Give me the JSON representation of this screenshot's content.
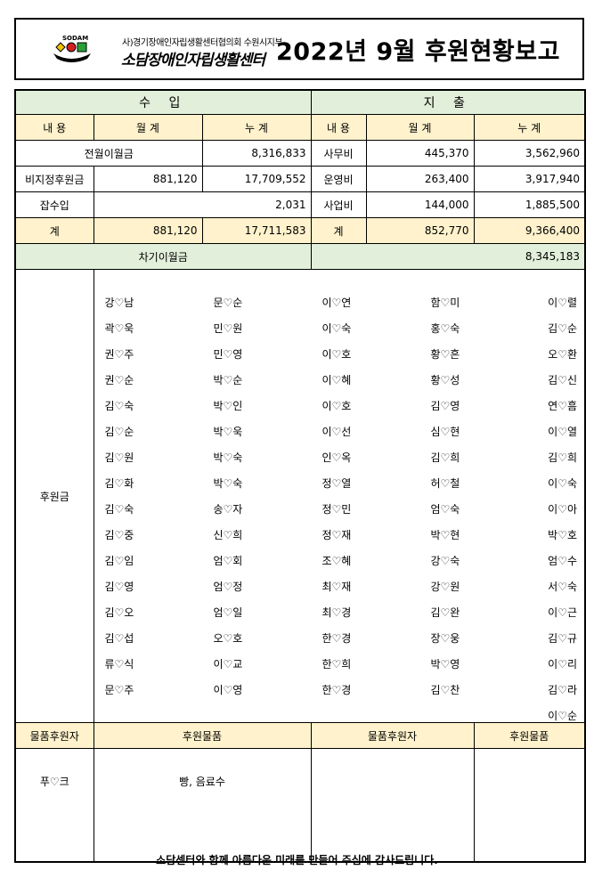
{
  "header": {
    "logo_text": "SODAM",
    "org": "사)경기장애인자립생활센터협의회 수원시지부",
    "center_name": "소담장애인자립생활센터",
    "title": "2022년 9월 후원현황보고"
  },
  "colors": {
    "section_header": "#e2efda",
    "column_header": "#fff2cc"
  },
  "income": {
    "label": "수 입",
    "col_item": "내 용",
    "col_month": "월 계",
    "col_total": "누 계",
    "rows": [
      {
        "item": "전월이월금",
        "total": "8,316,833"
      },
      {
        "item": "비지정후원금",
        "month": "881,120",
        "total": "17,709,552"
      },
      {
        "item": "잡수입",
        "total": "2,031"
      },
      {
        "item": "계",
        "month": "881,120",
        "total": "17,711,583"
      }
    ]
  },
  "expense": {
    "label": "지 출",
    "col_item": "내 용",
    "col_month": "월 계",
    "col_total": "누 계",
    "rows": [
      {
        "item": "사무비",
        "month": "445,370",
        "total": "3,562,960"
      },
      {
        "item": "운영비",
        "month": "263,400",
        "total": "3,917,940"
      },
      {
        "item": "사업비",
        "month": "144,000",
        "total": "1,885,500"
      },
      {
        "item": "계",
        "month": "852,770",
        "total": "9,366,400"
      }
    ]
  },
  "carryover": {
    "label": "차기이월금",
    "value": "8,345,183"
  },
  "donations": {
    "label": "후원금",
    "columns": [
      [
        "강♡남",
        "곽♡욱",
        "권♡주",
        "권♡순",
        "김♡숙",
        "김♡순",
        "김♡원",
        "김♡화",
        "김♡숙",
        "김♡중",
        "김♡임",
        "김♡영",
        "김♡오",
        "김♡섭",
        "류♡식",
        "문♡주"
      ],
      [
        "문♡순",
        "민♡원",
        "민♡영",
        "박♡순",
        "박♡인",
        "박♡욱",
        "박♡숙",
        "박♡숙",
        "송♡자",
        "신♡희",
        "엄♡회",
        "엄♡정",
        "엄♡일",
        "오♡호",
        "이♡교",
        "이♡영"
      ],
      [
        "이♡연",
        "이♡숙",
        "이♡호",
        "이♡혜",
        "이♡호",
        "이♡선",
        "인♡옥",
        "정♡열",
        "정♡민",
        "정♡재",
        "조♡혜",
        "최♡재",
        "최♡경",
        "한♡경",
        "한♡희",
        "한♡경"
      ],
      [
        "함♡미",
        "홍♡숙",
        "황♡흔",
        "황♡성",
        "김♡영",
        "심♡현",
        "김♡희",
        "허♡철",
        "엄♡숙",
        "박♡현",
        "강♡숙",
        "강♡원",
        "김♡완",
        "장♡웅",
        "박♡영",
        "김♡찬"
      ],
      [
        "이♡렬",
        "김♡순",
        "오♡환",
        "김♡신",
        "연♡흠",
        "이♡열",
        "김♡희",
        "이♡숙",
        "이♡아",
        "박♡호",
        "엄♡수",
        "서♡숙",
        "이♡근",
        "김♡규",
        "이♡리",
        "김♡라",
        "이♡순"
      ]
    ]
  },
  "goods": {
    "col_donor": "물품후원자",
    "col_item": "후원물품",
    "col_donor2": "물품후원자",
    "col_item2": "후원물품",
    "donor": "푸♡크",
    "item": "빵, 음료수"
  },
  "footer": "소담센터와 함께 아름다운 미래를 만들어 주심에 감사드립니다."
}
